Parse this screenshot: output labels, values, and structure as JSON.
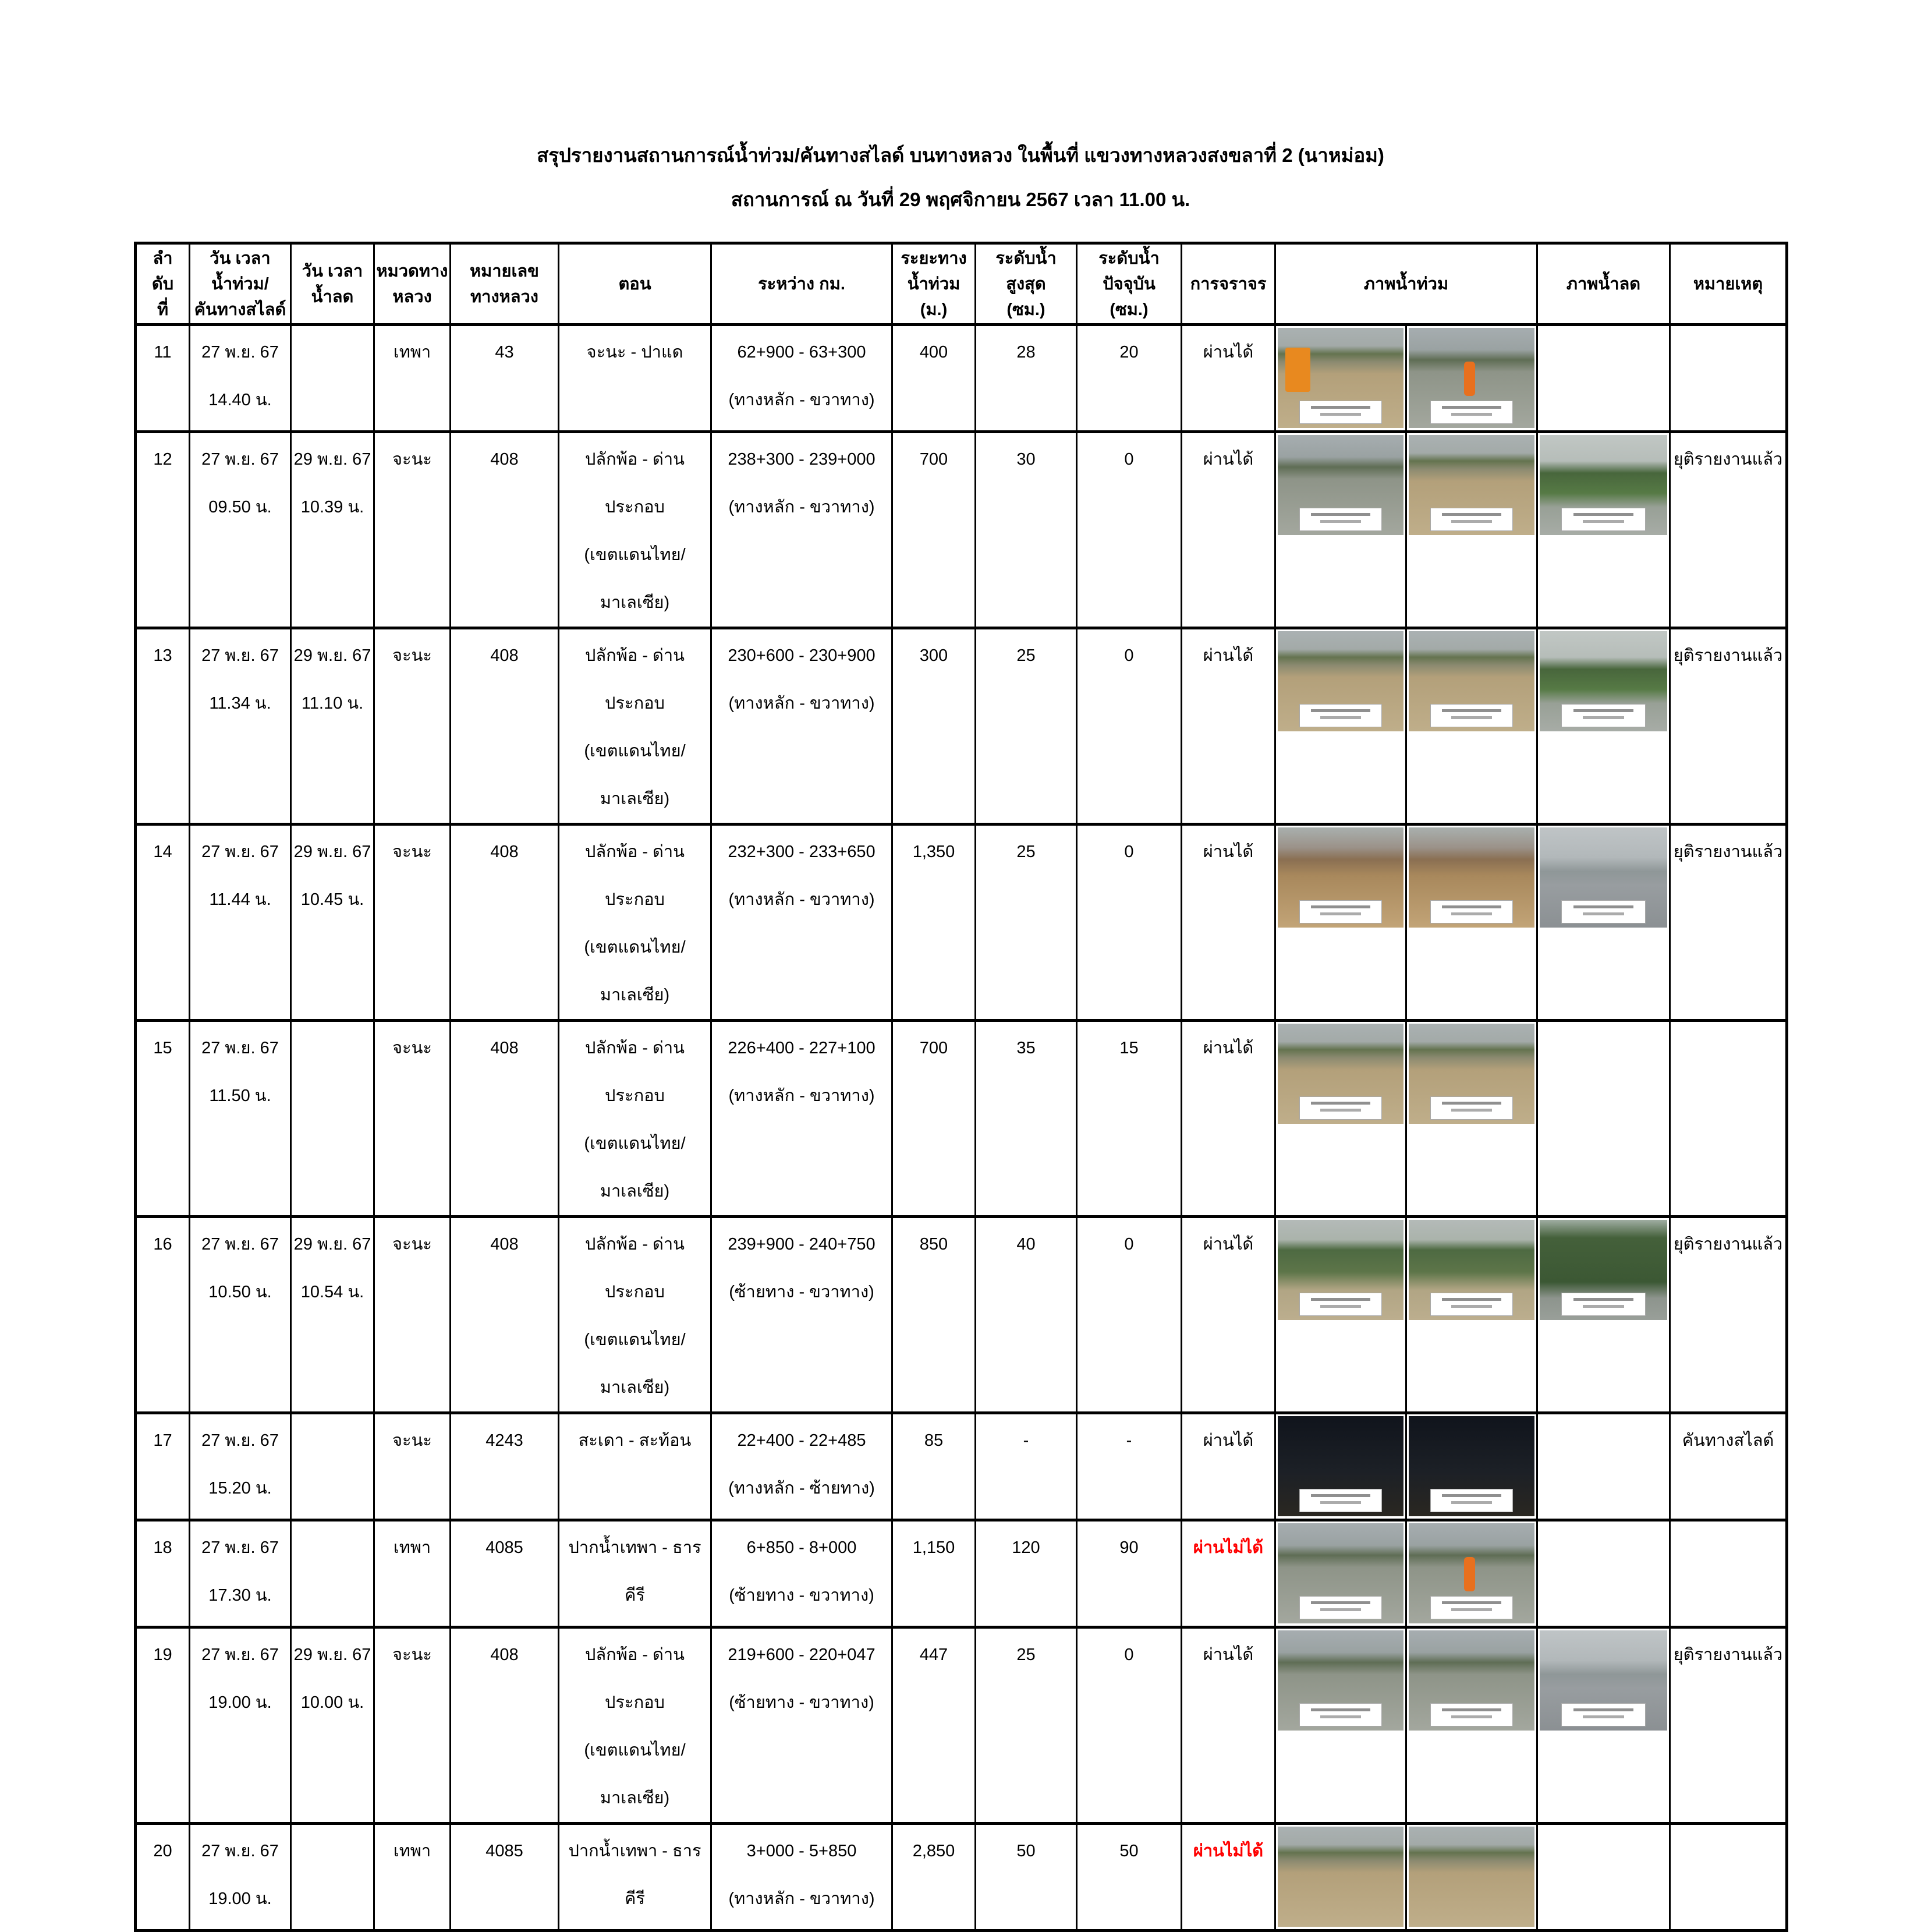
{
  "title": "สรุปรายงานสถานการณ์น้ำท่วม/คันทางสไลด์ บนทางหลวง  ในพื้นที่ แขวงทางหลวงสงขลาที่ 2 (นาหม่อม)",
  "subtitle": "สถานการณ์ ณ วันที่ 29 พฤศจิกายน 2567 เวลา 11.00 น.",
  "table": {
    "headers": [
      [
        "ลำ",
        "ดับ",
        "ที่"
      ],
      [
        "วัน เวลา",
        "น้ำท่วม/",
        "คันทางสไลด์"
      ],
      [
        "วัน เวลา",
        "น้ำลด"
      ],
      [
        "หมวดทาง",
        "หลวง"
      ],
      [
        "หมายเลข",
        "ทางหลวง"
      ],
      [
        "ตอน"
      ],
      [
        "ระหว่าง กม."
      ],
      [
        "ระยะทาง",
        "น้ำท่วม",
        "(ม.)"
      ],
      [
        "ระดับน้ำ",
        "สูงสุด",
        "(ซม.)"
      ],
      [
        "ระดับน้ำ",
        "ปัจจุบัน",
        "(ซม.)"
      ],
      [
        "การจราจร"
      ],
      [
        "ภาพน้ำท่วม"
      ],
      [
        "ภาพน้ำลด"
      ],
      [
        "หมายเหตุ"
      ]
    ],
    "rows": [
      {
        "no": "11",
        "flood_datetime": [
          "27 พ.ย. 67",
          "14.40 น."
        ],
        "recede_datetime": [],
        "division": "เทพา",
        "route": "43",
        "section": [
          "จะนะ - ปาแด"
        ],
        "km_range": [
          "62+900 - 63+300",
          "(ทางหลัก - ขวาทาง)"
        ],
        "flood_length_m": "400",
        "max_level_cm": "28",
        "current_level_cm": "20",
        "traffic": "ผ่านได้",
        "traffic_passable": true,
        "flood_photos": [
          "tan-orange",
          "gray-orange"
        ],
        "recede_photo": "",
        "photo_captions": true,
        "remark": ""
      },
      {
        "no": "12",
        "flood_datetime": [
          "27 พ.ย. 67",
          "09.50 น."
        ],
        "recede_datetime": [
          "29 พ.ย. 67",
          "10.39 น."
        ],
        "division": "จะนะ",
        "route": "408",
        "section": [
          "ปลักพ้อ - ด่านประกอบ",
          "(เขตแดนไทย/มาเลเซีย)"
        ],
        "km_range": [
          "238+300 - 239+000",
          "(ทางหลัก - ขวาทาง)"
        ],
        "flood_length_m": "700",
        "max_level_cm": "30",
        "current_level_cm": "0",
        "traffic": "ผ่านได้",
        "traffic_passable": true,
        "flood_photos": [
          "gray",
          "tan"
        ],
        "recede_photo": "calm-green",
        "photo_captions": true,
        "remark": "ยุติรายงานแล้ว"
      },
      {
        "no": "13",
        "flood_datetime": [
          "27 พ.ย. 67",
          "11.34 น."
        ],
        "recede_datetime": [
          "29 พ.ย. 67",
          "11.10 น."
        ],
        "division": "จะนะ",
        "route": "408",
        "section": [
          "ปลักพ้อ - ด่านประกอบ",
          "(เขตแดนไทย/มาเลเซีย)"
        ],
        "km_range": [
          "230+600 - 230+900",
          "(ทางหลัก - ขวาทาง)"
        ],
        "flood_length_m": "300",
        "max_level_cm": "25",
        "current_level_cm": "0",
        "traffic": "ผ่านได้",
        "traffic_passable": true,
        "flood_photos": [
          "tan",
          "tan"
        ],
        "recede_photo": "calm-green",
        "photo_captions": true,
        "remark": "ยุติรายงานแล้ว"
      },
      {
        "no": "14",
        "flood_datetime": [
          "27 พ.ย. 67",
          "11.44 น."
        ],
        "recede_datetime": [
          "29 พ.ย. 67",
          "10.45 น."
        ],
        "division": "จะนะ",
        "route": "408",
        "section": [
          "ปลักพ้อ - ด่านประกอบ",
          "(เขตแดนไทย/มาเลเซีย)"
        ],
        "km_range": [
          "232+300 - 233+650",
          "(ทางหลัก - ขวาทาง)"
        ],
        "flood_length_m": "1,350",
        "max_level_cm": "25",
        "current_level_cm": "0",
        "traffic": "ผ่านได้",
        "traffic_passable": true,
        "flood_photos": [
          "brown",
          "brown"
        ],
        "recede_photo": "calm-road",
        "photo_captions": true,
        "remark": "ยุติรายงานแล้ว"
      },
      {
        "no": "15",
        "flood_datetime": [
          "27 พ.ย. 67",
          "11.50 น."
        ],
        "recede_datetime": [],
        "division": "จะนะ",
        "route": "408",
        "section": [
          "ปลักพ้อ - ด่านประกอบ",
          "(เขตแดนไทย/มาเลเซีย)"
        ],
        "km_range": [
          "226+400 - 227+100",
          "(ทางหลัก - ขวาทาง)"
        ],
        "flood_length_m": "700",
        "max_level_cm": "35",
        "current_level_cm": "15",
        "traffic": "ผ่านได้",
        "traffic_passable": true,
        "flood_photos": [
          "tan",
          "tan"
        ],
        "recede_photo": "",
        "photo_captions": true,
        "remark": ""
      },
      {
        "no": "16",
        "flood_datetime": [
          "27 พ.ย. 67",
          "10.50 น."
        ],
        "recede_datetime": [
          "29 พ.ย. 67",
          "10.54 น."
        ],
        "division": "จะนะ",
        "route": "408",
        "section": [
          "ปลักพ้อ - ด่านประกอบ",
          "(เขตแดนไทย/มาเลเซีย)"
        ],
        "km_range": [
          "239+900 - 240+750",
          "(ซ้ายทาง - ขวาทาง)"
        ],
        "flood_length_m": "850",
        "max_level_cm": "40",
        "current_level_cm": "0",
        "traffic": "ผ่านได้",
        "traffic_passable": true,
        "flood_photos": [
          "green",
          "green"
        ],
        "recede_photo": "forest",
        "photo_captions": true,
        "remark": "ยุติรายงานแล้ว"
      },
      {
        "no": "17",
        "flood_datetime": [
          "27 พ.ย. 67",
          "15.20 น."
        ],
        "recede_datetime": [],
        "division": "จะนะ",
        "route": "4243",
        "section": [
          "สะเดา - สะท้อน"
        ],
        "km_range": [
          "22+400 - 22+485",
          "(ทางหลัก - ซ้ายทาง)"
        ],
        "flood_length_m": "85",
        "max_level_cm": "-",
        "current_level_cm": "-",
        "traffic": "ผ่านได้",
        "traffic_passable": true,
        "flood_photos": [
          "night",
          "night"
        ],
        "recede_photo": "",
        "photo_captions": true,
        "remark": "คันทางสไลด์"
      },
      {
        "no": "18",
        "flood_datetime": [
          "27 พ.ย. 67",
          "17.30 น."
        ],
        "recede_datetime": [],
        "division": "เทพา",
        "route": "4085",
        "section": [
          "ปากน้ำเทพา - ธารคีรี"
        ],
        "km_range": [
          "6+850 - 8+000",
          "(ซ้ายทาง - ขวาทาง)"
        ],
        "flood_length_m": "1,150",
        "max_level_cm": "120",
        "current_level_cm": "90",
        "traffic": "ผ่านไม่ได้",
        "traffic_passable": false,
        "flood_photos": [
          "gray",
          "gray-orange"
        ],
        "recede_photo": "",
        "photo_captions": true,
        "remark": ""
      },
      {
        "no": "19",
        "flood_datetime": [
          "27 พ.ย. 67",
          "19.00 น."
        ],
        "recede_datetime": [
          "29 พ.ย. 67",
          "10.00 น."
        ],
        "division": "จะนะ",
        "route": "408",
        "section": [
          "ปลักพ้อ - ด่านประกอบ",
          "(เขตแดนไทย/มาเลเซีย)"
        ],
        "km_range": [
          "219+600 - 220+047",
          "(ซ้ายทาง - ขวาทาง)"
        ],
        "flood_length_m": "447",
        "max_level_cm": "25",
        "current_level_cm": "0",
        "traffic": "ผ่านได้",
        "traffic_passable": true,
        "flood_photos": [
          "gray",
          "gray"
        ],
        "recede_photo": "calm-road",
        "photo_captions": true,
        "remark": "ยุติรายงานแล้ว"
      },
      {
        "no": "20",
        "flood_datetime": [
          "27 พ.ย. 67",
          "19.00 น."
        ],
        "recede_datetime": [],
        "division": "เทพา",
        "route": "4085",
        "section": [
          "ปากน้ำเทพา - ธารคีรี"
        ],
        "km_range": [
          "3+000 - 5+850",
          "(ทางหลัก - ขวาทาง)"
        ],
        "flood_length_m": "2,850",
        "max_level_cm": "50",
        "current_level_cm": "50",
        "traffic": "ผ่านไม่ได้",
        "traffic_passable": false,
        "flood_photos": [
          "tan",
          "tan"
        ],
        "recede_photo": "",
        "photo_captions": false,
        "remark": ""
      }
    ]
  }
}
